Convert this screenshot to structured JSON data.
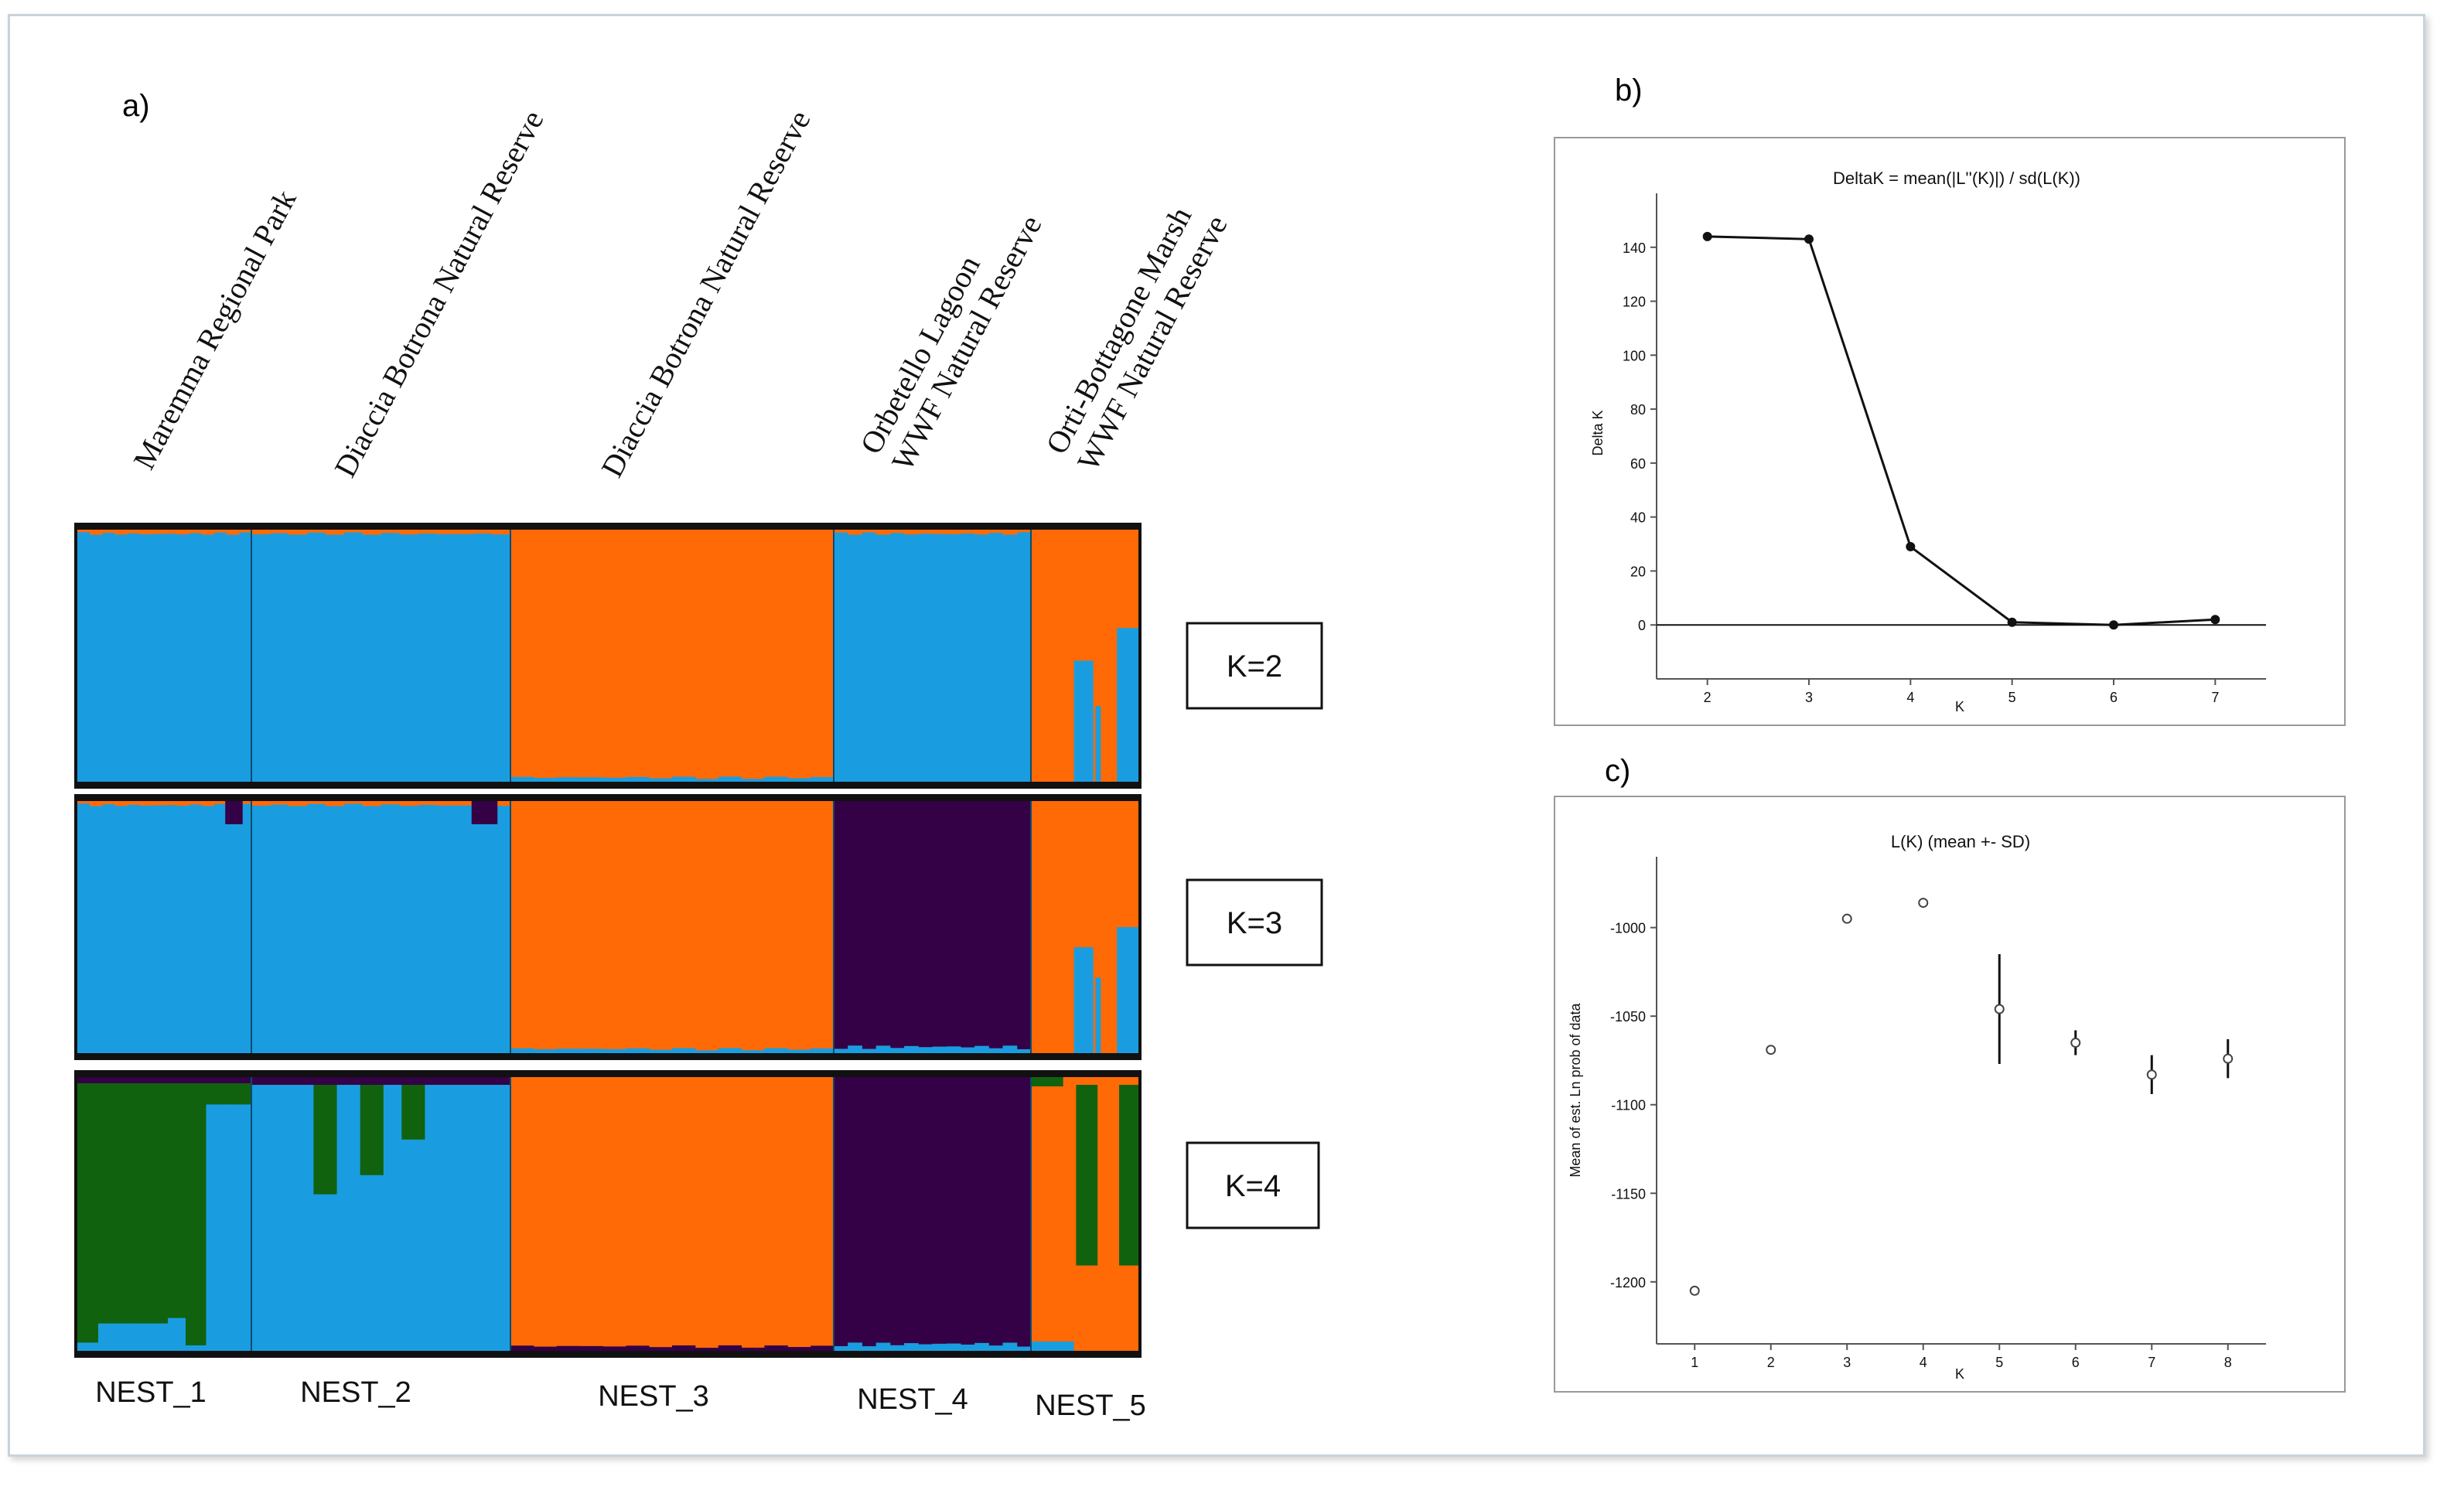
{
  "panels": {
    "a": "a)",
    "b": "b)",
    "c": "c)"
  },
  "sites": [
    [
      "Maremma Regional Park"
    ],
    [
      "Diaccia Botrona  Natural Reserve"
    ],
    [
      "Diaccia Botrona  Natural Reserve"
    ],
    [
      "Orbetello Lagoon",
      "WWF Natural Reserve"
    ],
    [
      "Orti-Bottagone Marsh",
      "WWF Natural Reserve"
    ]
  ],
  "nests": [
    "NEST_1",
    "NEST_2",
    "NEST_3",
    "NEST_4",
    "NEST_5"
  ],
  "k_labels": [
    "K=2",
    "K=3",
    "K=4"
  ],
  "colors": {
    "blue": "#1a9de0",
    "orange": "#ff6a06",
    "purple": "#340046",
    "green": "#10620f",
    "frame": "#c8d4dc"
  },
  "chart_data": [
    {
      "type": "bar",
      "stacked": true,
      "title": "",
      "description_note": "",
      "groups": [
        "NEST_1",
        "NEST_2",
        "NEST_3",
        "NEST_4",
        "NEST_5"
      ],
      "rows": [
        "K=2",
        "K=3",
        "K=4"
      ],
      "segments": {
        "K=2": [
          {
            "group": "NEST_1",
            "blue": 0.98,
            "orange": 0.02
          },
          {
            "group": "NEST_2",
            "blue": 0.98,
            "orange": 0.02
          },
          {
            "group": "NEST_3",
            "orange": 0.98,
            "blue": 0.02
          },
          {
            "group": "NEST_4",
            "blue": 0.98,
            "orange": 0.02
          },
          {
            "group": "NEST_5",
            "orange": 0.85,
            "blue": 0.15,
            "bars_blue": [
              0.0,
              0.0,
              0.0,
              0.48,
              0.0,
              0.61
            ]
          }
        ],
        "K=3": [
          {
            "group": "NEST_1",
            "blue": 0.97,
            "orange": 0.02,
            "purple": 0.01
          },
          {
            "group": "NEST_2",
            "blue": 0.97,
            "orange": 0.02,
            "purple": 0.01
          },
          {
            "group": "NEST_3",
            "orange": 0.98,
            "blue": 0.02
          },
          {
            "group": "NEST_4",
            "purple": 0.97,
            "blue": 0.03
          },
          {
            "group": "NEST_5",
            "orange": 0.85,
            "blue": 0.15,
            "bars_blue": [
              0.0,
              0.0,
              0.0,
              0.42,
              0.0,
              0.5
            ]
          }
        ],
        "K=4": [
          {
            "group": "NEST_1",
            "green": 0.75,
            "blue": 0.25,
            "bars_blue": [
              0.03,
              0.1,
              0.1,
              0.12,
              0.02,
              0.9,
              0.9
            ]
          },
          {
            "group": "NEST_2",
            "blue": 0.84,
            "green": 0.16,
            "bars_green": [
              0.0,
              0.4,
              0.33,
              0.2,
              0.0
            ]
          },
          {
            "group": "NEST_3",
            "orange": 0.98,
            "purple": 0.02
          },
          {
            "group": "NEST_4",
            "purple": 0.97,
            "blue": 0.03
          },
          {
            "group": "NEST_5",
            "orange": 0.7,
            "green": 0.3,
            "bars_green": [
              0.0,
              0.0,
              0.0,
              0.66,
              0.0,
              0.66
            ]
          }
        ]
      }
    },
    {
      "type": "line",
      "title": "DeltaK = mean(|L''(K)|) / sd(L(K))",
      "xlabel": "K",
      "ylabel": "Delta K",
      "x": [
        2,
        3,
        4,
        5,
        6,
        7
      ],
      "y": [
        144,
        143,
        29,
        1,
        0,
        2
      ],
      "xlim": [
        1.5,
        7.5
      ],
      "ylim": [
        -20,
        160
      ],
      "yticks": [
        0,
        20,
        40,
        60,
        80,
        100,
        120,
        140
      ],
      "xticks": [
        2,
        3,
        4,
        5,
        6,
        7
      ]
    },
    {
      "type": "scatter",
      "title": "L(K) (mean +- SD)",
      "xlabel": "K",
      "ylabel": "Mean of est. Ln prob of data",
      "x": [
        1,
        2,
        3,
        4,
        5,
        6,
        7,
        8
      ],
      "y": [
        -1205,
        -1069,
        -995,
        -986,
        -1046,
        -1065,
        -1083,
        -1074
      ],
      "sd": [
        0,
        0,
        0,
        0,
        31,
        7,
        11,
        11
      ],
      "xlim": [
        0.5,
        8.5
      ],
      "ylim": [
        -1235,
        -960
      ],
      "yticks": [
        -1000,
        -1050,
        -1100,
        -1150,
        -1200
      ],
      "xticks": [
        1,
        2,
        3,
        4,
        5,
        6,
        7,
        8
      ]
    }
  ]
}
